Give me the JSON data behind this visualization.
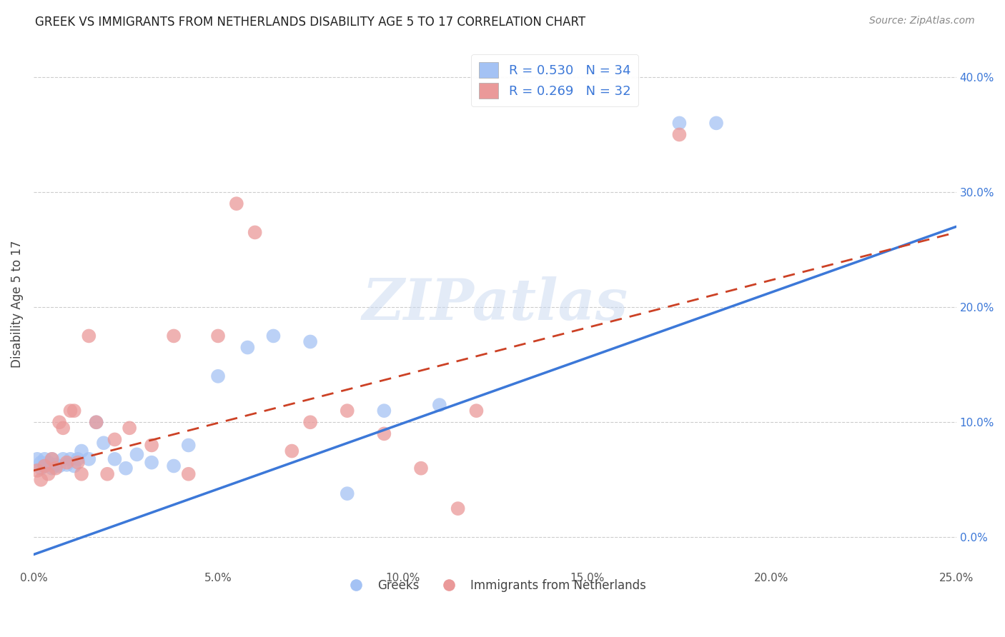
{
  "title": "GREEK VS IMMIGRANTS FROM NETHERLANDS DISABILITY AGE 5 TO 17 CORRELATION CHART",
  "source": "Source: ZipAtlas.com",
  "ylabel": "Disability Age 5 to 17",
  "xlim": [
    0.0,
    0.25
  ],
  "ylim": [
    -0.025,
    0.43
  ],
  "xticks": [
    0.0,
    0.05,
    0.1,
    0.15,
    0.2,
    0.25
  ],
  "xtick_labels": [
    "0.0%",
    "5.0%",
    "10.0%",
    "15.0%",
    "20.0%",
    "25.0%"
  ],
  "yticks_right": [
    0.0,
    0.1,
    0.2,
    0.3,
    0.4
  ],
  "ytick_labels_right": [
    "0.0%",
    "10.0%",
    "20.0%",
    "30.0%",
    "40.0%"
  ],
  "legend_label1": "R = 0.530   N = 34",
  "legend_label2": "R = 0.269   N = 32",
  "legend_label_bottom1": "Greeks",
  "legend_label_bottom2": "Immigrants from Netherlands",
  "color_blue": "#a4c2f4",
  "color_pink": "#ea9999",
  "color_trendline_blue": "#3c78d8",
  "color_trendline_pink": "#cc4125",
  "watermark": "ZIPatlas",
  "greek_x": [
    0.001,
    0.002,
    0.002,
    0.003,
    0.003,
    0.004,
    0.005,
    0.005,
    0.006,
    0.007,
    0.008,
    0.009,
    0.01,
    0.011,
    0.012,
    0.013,
    0.015,
    0.017,
    0.019,
    0.022,
    0.025,
    0.028,
    0.032,
    0.038,
    0.042,
    0.05,
    0.058,
    0.065,
    0.075,
    0.085,
    0.095,
    0.11,
    0.175,
    0.185
  ],
  "greek_y": [
    0.068,
    0.06,
    0.065,
    0.062,
    0.068,
    0.065,
    0.06,
    0.068,
    0.063,
    0.062,
    0.068,
    0.063,
    0.068,
    0.062,
    0.068,
    0.075,
    0.068,
    0.1,
    0.082,
    0.068,
    0.06,
    0.072,
    0.065,
    0.062,
    0.08,
    0.14,
    0.165,
    0.175,
    0.17,
    0.038,
    0.11,
    0.115,
    0.36,
    0.36
  ],
  "netherlands_x": [
    0.001,
    0.002,
    0.003,
    0.004,
    0.005,
    0.006,
    0.007,
    0.008,
    0.009,
    0.01,
    0.011,
    0.012,
    0.013,
    0.015,
    0.017,
    0.02,
    0.022,
    0.026,
    0.032,
    0.038,
    0.042,
    0.05,
    0.055,
    0.06,
    0.07,
    0.075,
    0.085,
    0.095,
    0.105,
    0.115,
    0.12,
    0.175
  ],
  "netherlands_y": [
    0.058,
    0.05,
    0.062,
    0.055,
    0.068,
    0.06,
    0.1,
    0.095,
    0.065,
    0.11,
    0.11,
    0.065,
    0.055,
    0.175,
    0.1,
    0.055,
    0.085,
    0.095,
    0.08,
    0.175,
    0.055,
    0.175,
    0.29,
    0.265,
    0.075,
    0.1,
    0.11,
    0.09,
    0.06,
    0.025,
    0.11,
    0.35
  ],
  "trendline_blue_x0": 0.0,
  "trendline_blue_y0": -0.015,
  "trendline_blue_x1": 0.25,
  "trendline_blue_y1": 0.27,
  "trendline_pink_x0": 0.0,
  "trendline_pink_y0": 0.058,
  "trendline_pink_x1": 0.25,
  "trendline_pink_y1": 0.265
}
